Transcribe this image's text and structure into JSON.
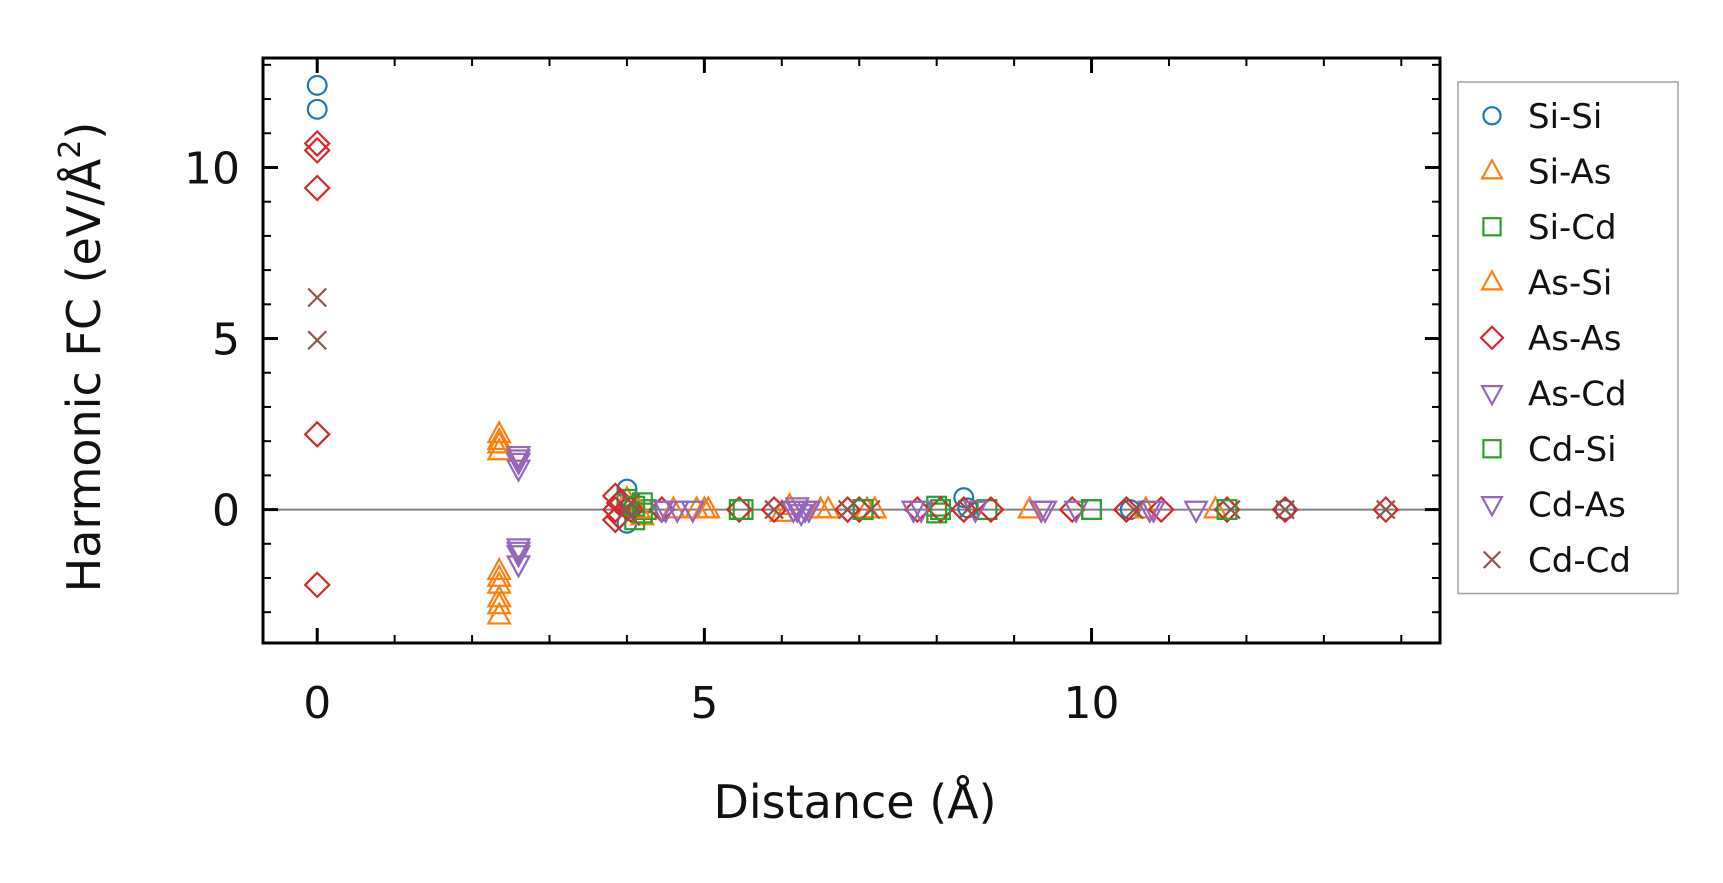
{
  "chart_data": {
    "type": "scatter",
    "title": "",
    "xlabel": "Distance (Å)",
    "ylabel_main": "Harmonic FC (eV/Å",
    "ylabel_sup": "2",
    "ylabel_close": ")",
    "xlim": [
      -0.7,
      14.5
    ],
    "ylim": [
      -3.9,
      13.2
    ],
    "xticks": [
      0,
      5,
      10
    ],
    "xtick_labels": [
      "0",
      "5",
      "10"
    ],
    "yticks": [
      0,
      5,
      10
    ],
    "ytick_labels": [
      "0",
      "5",
      "10"
    ],
    "x_minor_step": 1,
    "y_minor_step": 1,
    "zero_line": 0,
    "legend_position": "outside-right",
    "series": [
      {
        "name": "Si-Si",
        "marker": "circle",
        "color": "#1f77b4",
        "points": [
          [
            0,
            12.4
          ],
          [
            0,
            11.7
          ],
          [
            4.0,
            0.6
          ],
          [
            4.0,
            -0.4
          ],
          [
            4.05,
            0.1
          ],
          [
            8.35,
            0.35
          ],
          [
            8.4,
            0.05
          ],
          [
            10.5,
            0.0
          ],
          [
            12.5,
            0.0
          ]
        ]
      },
      {
        "name": "Si-As",
        "marker": "triangle-up",
        "color": "#ff7f0e",
        "points": [
          [
            2.35,
            2.2
          ],
          [
            2.35,
            1.9
          ],
          [
            2.35,
            1.7
          ],
          [
            2.35,
            -1.8
          ],
          [
            2.35,
            -2.2
          ],
          [
            2.35,
            -2.8
          ],
          [
            2.35,
            -3.1
          ],
          [
            4.0,
            0.3
          ],
          [
            4.2,
            -0.2
          ],
          [
            4.6,
            0.0
          ],
          [
            4.9,
            0.0
          ],
          [
            5.0,
            0.0
          ],
          [
            6.0,
            -0.1
          ],
          [
            6.1,
            0.1
          ],
          [
            6.5,
            0.0
          ],
          [
            7.2,
            0.0
          ],
          [
            9.2,
            0.0
          ],
          [
            10.7,
            0.0
          ],
          [
            11.6,
            0.0
          ]
        ]
      },
      {
        "name": "Si-Cd",
        "marker": "square",
        "color": "#2ca02c",
        "points": [
          [
            4.0,
            0.3
          ],
          [
            4.1,
            -0.3
          ],
          [
            4.2,
            0.2
          ],
          [
            4.25,
            0.0
          ],
          [
            5.45,
            0.0
          ],
          [
            7.05,
            0.0
          ],
          [
            8.0,
            0.1
          ],
          [
            8.0,
            -0.1
          ],
          [
            8.65,
            0.0
          ],
          [
            10.0,
            0.0
          ]
        ]
      },
      {
        "name": "As-Si",
        "marker": "triangle-up",
        "color": "#ff7f0e",
        "points": [
          [
            2.35,
            2.0
          ],
          [
            2.35,
            -2.0
          ],
          [
            2.35,
            -2.6
          ],
          [
            4.15,
            0.0
          ],
          [
            5.05,
            0.0
          ],
          [
            6.6,
            0.0
          ],
          [
            7.1,
            0.0
          ]
        ]
      },
      {
        "name": "As-As",
        "marker": "diamond",
        "color": "#d62728",
        "points": [
          [
            0,
            10.7
          ],
          [
            0,
            10.5
          ],
          [
            0,
            9.4
          ],
          [
            0,
            2.2
          ],
          [
            0,
            -2.2
          ],
          [
            3.85,
            0.4
          ],
          [
            3.85,
            0.0
          ],
          [
            3.85,
            -0.3
          ],
          [
            3.9,
            0.2
          ],
          [
            3.9,
            -0.2
          ],
          [
            4.05,
            0.0
          ],
          [
            4.45,
            0.0
          ],
          [
            5.45,
            0.0
          ],
          [
            5.9,
            0.0
          ],
          [
            6.85,
            0.0
          ],
          [
            7.0,
            0.0
          ],
          [
            7.75,
            0.0
          ],
          [
            8.05,
            0.0
          ],
          [
            8.35,
            0.0
          ],
          [
            8.7,
            0.0
          ],
          [
            9.75,
            0.0
          ],
          [
            10.45,
            0.0
          ],
          [
            10.9,
            0.0
          ],
          [
            11.75,
            0.0
          ],
          [
            12.5,
            0.0
          ],
          [
            13.8,
            0.0
          ]
        ]
      },
      {
        "name": "As-Cd",
        "marker": "triangle-down",
        "color": "#9467bd",
        "points": [
          [
            2.6,
            1.6
          ],
          [
            2.6,
            1.4
          ],
          [
            2.6,
            1.2
          ],
          [
            2.6,
            -1.1
          ],
          [
            2.6,
            -1.3
          ],
          [
            2.6,
            -1.6
          ],
          [
            4.45,
            0.0
          ],
          [
            4.65,
            0.0
          ],
          [
            4.85,
            0.0
          ],
          [
            6.15,
            0.0
          ],
          [
            6.2,
            0.1
          ],
          [
            6.25,
            -0.1
          ],
          [
            6.35,
            0.0
          ],
          [
            7.7,
            0.0
          ],
          [
            8.5,
            0.0
          ],
          [
            9.35,
            0.0
          ],
          [
            9.8,
            0.0
          ],
          [
            10.75,
            0.0
          ],
          [
            11.35,
            0.0
          ]
        ]
      },
      {
        "name": "Cd-Si",
        "marker": "square",
        "color": "#2ca02c",
        "points": [
          [
            4.1,
            0.1
          ],
          [
            4.2,
            -0.1
          ],
          [
            5.5,
            0.0
          ],
          [
            7.05,
            0.0
          ],
          [
            8.05,
            0.0
          ],
          [
            10.0,
            0.0
          ],
          [
            11.75,
            0.0
          ]
        ]
      },
      {
        "name": "Cd-As",
        "marker": "triangle-down",
        "color": "#9467bd",
        "points": [
          [
            2.6,
            1.5
          ],
          [
            2.6,
            -1.2
          ],
          [
            4.5,
            0.0
          ],
          [
            6.2,
            0.0
          ],
          [
            6.3,
            0.0
          ],
          [
            7.8,
            0.0
          ],
          [
            9.4,
            0.0
          ],
          [
            10.8,
            0.0
          ]
        ]
      },
      {
        "name": "Cd-Cd",
        "marker": "x",
        "color": "#8c564b",
        "points": [
          [
            0,
            6.2
          ],
          [
            0,
            4.95
          ],
          [
            4.0,
            0.0
          ],
          [
            4.05,
            0.2
          ],
          [
            4.05,
            -0.2
          ],
          [
            5.9,
            0.0
          ],
          [
            6.85,
            0.0
          ],
          [
            7.15,
            0.0
          ],
          [
            8.4,
            0.0
          ],
          [
            10.55,
            0.0
          ],
          [
            11.8,
            0.0
          ],
          [
            12.5,
            0.0
          ],
          [
            13.8,
            0.0
          ]
        ]
      }
    ]
  }
}
